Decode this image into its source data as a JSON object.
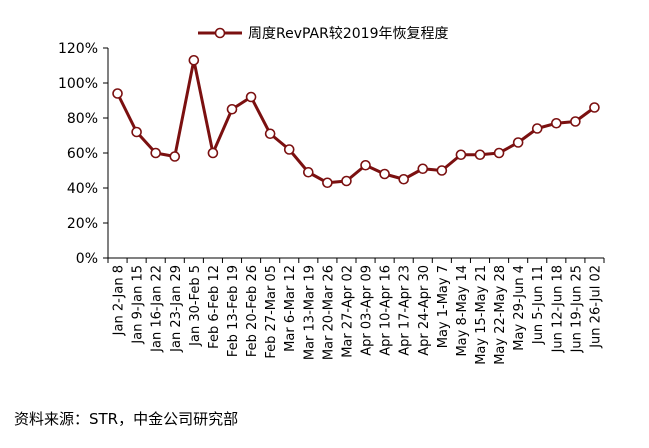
{
  "chart_data": {
    "type": "line",
    "title": "",
    "legend": {
      "label": "周度RevPAR较2019年恢复程度",
      "position": "top"
    },
    "colors": {
      "series": "#7B1010",
      "axis": "#000000",
      "marker_fill": "#ffffff"
    },
    "xlabel": "",
    "ylabel": "",
    "ylim": [
      0,
      120
    ],
    "yticks": [
      "0%",
      "20%",
      "40%",
      "60%",
      "80%",
      "100%",
      "120%"
    ],
    "grid": false,
    "categories": [
      "Jan 2-Jan 8",
      "Jan 9-Jan 15",
      "Jan 16-Jan 22",
      "Jan 23-Jan 29",
      "Jan 30-Feb 5",
      "Feb 6-Feb 12",
      "Feb 13-Feb 19",
      "Feb 20-Feb 26",
      "Feb 27-Mar 05",
      "Mar 6-Mar 12",
      "Mar 13-Mar 19",
      "Mar 20-Mar 26",
      "Mar 27-Apr 02",
      "Apr 03-Apr 09",
      "Apr 10-Apr 16",
      "Apr 17-Apr 23",
      "Apr 24-Apr 30",
      "May 1-May 7",
      "May 8-May 14",
      "May 15-May 21",
      "May 22-May 28",
      "May 29-Jun 4",
      "Jun 5-Jun 11",
      "Jun 12-Jun 18",
      "Jun 19-Jun 25",
      "Jun 26-Jul 02"
    ],
    "series": [
      {
        "name": "周度RevPAR较2019年恢复程度",
        "values": [
          94,
          72,
          60,
          58,
          113,
          60,
          85,
          92,
          71,
          62,
          49,
          43,
          44,
          53,
          48,
          45,
          51,
          50,
          59,
          59,
          60,
          66,
          74,
          77,
          78,
          86
        ]
      }
    ]
  },
  "source": "资料来源：STR，中金公司研究部"
}
